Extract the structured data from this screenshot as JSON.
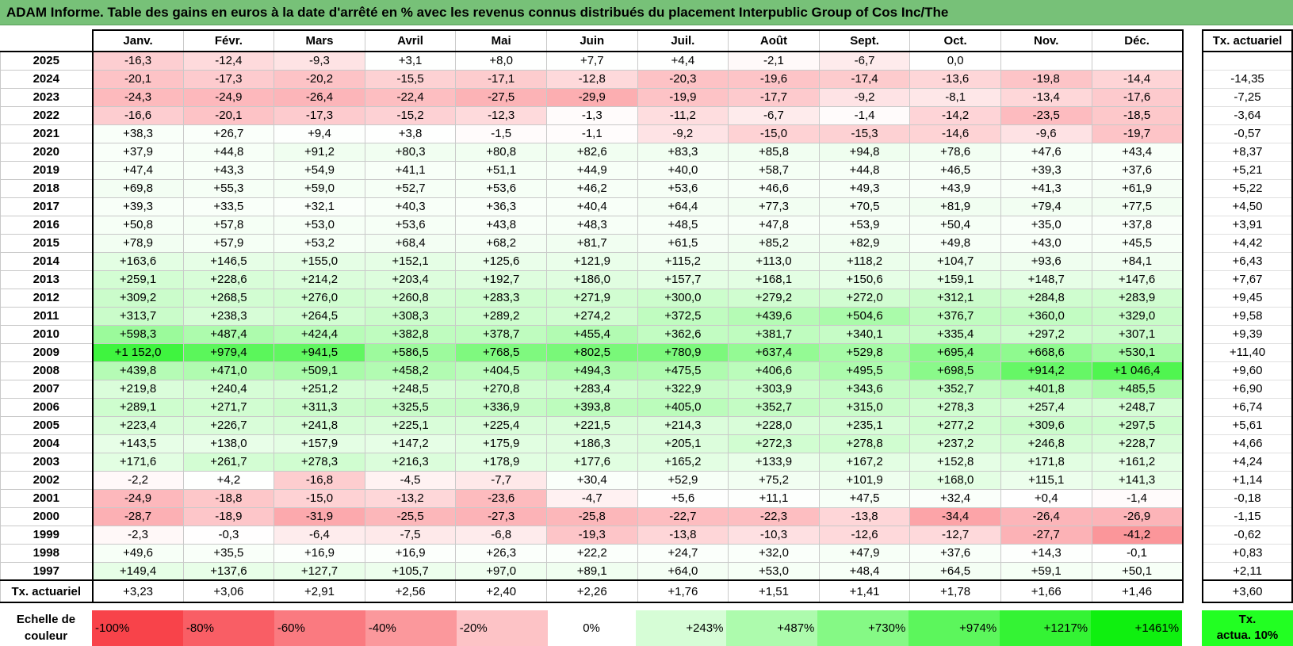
{
  "title": "ADAM Informe. Table des gains en euros à la date d'arrêté en % avec les revenus connus distribués du placement Interpublic Group of Cos Inc/The",
  "chart_data": {
    "type": "heatmap",
    "title": "ADAM Informe. Table des gains en euros à la date d'arrêté en % avec les revenus connus distribués du placement Interpublic Group of Cos Inc/The",
    "months": [
      "Janv.",
      "Févr.",
      "Mars",
      "Avril",
      "Mai",
      "Juin",
      "Juil.",
      "Août",
      "Sept.",
      "Oct.",
      "Nov.",
      "Déc."
    ],
    "rate_header": "Tx. actuariel",
    "rows": [
      {
        "year": "2025",
        "values": [
          "-16,3",
          "-12,4",
          "-9,3",
          "+3,1",
          "+8,0",
          "+7,7",
          "+4,4",
          "-2,1",
          "-6,7",
          "0,0",
          "",
          ""
        ],
        "rate": ""
      },
      {
        "year": "2024",
        "values": [
          "-20,1",
          "-17,3",
          "-20,2",
          "-15,5",
          "-17,1",
          "-12,8",
          "-20,3",
          "-19,6",
          "-17,4",
          "-13,6",
          "-19,8",
          "-14,4"
        ],
        "rate": "-14,35"
      },
      {
        "year": "2023",
        "values": [
          "-24,3",
          "-24,9",
          "-26,4",
          "-22,4",
          "-27,5",
          "-29,9",
          "-19,9",
          "-17,7",
          "-9,2",
          "-8,1",
          "-13,4",
          "-17,6"
        ],
        "rate": "-7,25"
      },
      {
        "year": "2022",
        "values": [
          "-16,6",
          "-20,1",
          "-17,3",
          "-15,2",
          "-12,3",
          "-1,3",
          "-11,2",
          "-6,7",
          "-1,4",
          "-14,2",
          "-23,5",
          "-18,5"
        ],
        "rate": "-3,64"
      },
      {
        "year": "2021",
        "values": [
          "+38,3",
          "+26,7",
          "+9,4",
          "+3,8",
          "-1,5",
          "-1,1",
          "-9,2",
          "-15,0",
          "-15,3",
          "-14,6",
          "-9,6",
          "-19,7"
        ],
        "rate": "-0,57"
      },
      {
        "year": "2020",
        "values": [
          "+37,9",
          "+44,8",
          "+91,2",
          "+80,3",
          "+80,8",
          "+82,6",
          "+83,3",
          "+85,8",
          "+94,8",
          "+78,6",
          "+47,6",
          "+43,4"
        ],
        "rate": "+8,37"
      },
      {
        "year": "2019",
        "values": [
          "+47,4",
          "+43,3",
          "+54,9",
          "+41,1",
          "+51,1",
          "+44,9",
          "+40,0",
          "+58,7",
          "+44,8",
          "+46,5",
          "+39,3",
          "+37,6"
        ],
        "rate": "+5,21"
      },
      {
        "year": "2018",
        "values": [
          "+69,8",
          "+55,3",
          "+59,0",
          "+52,7",
          "+53,6",
          "+46,2",
          "+53,6",
          "+46,6",
          "+49,3",
          "+43,9",
          "+41,3",
          "+61,9"
        ],
        "rate": "+5,22"
      },
      {
        "year": "2017",
        "values": [
          "+39,3",
          "+33,5",
          "+32,1",
          "+40,3",
          "+36,3",
          "+40,4",
          "+64,4",
          "+77,3",
          "+70,5",
          "+81,9",
          "+79,4",
          "+77,5"
        ],
        "rate": "+4,50"
      },
      {
        "year": "2016",
        "values": [
          "+50,8",
          "+57,8",
          "+53,0",
          "+53,6",
          "+43,8",
          "+48,3",
          "+48,5",
          "+47,8",
          "+53,9",
          "+50,4",
          "+35,0",
          "+37,8"
        ],
        "rate": "+3,91"
      },
      {
        "year": "2015",
        "values": [
          "+78,9",
          "+57,9",
          "+53,2",
          "+68,4",
          "+68,2",
          "+81,7",
          "+61,5",
          "+85,2",
          "+82,9",
          "+49,8",
          "+43,0",
          "+45,5"
        ],
        "rate": "+4,42"
      },
      {
        "year": "2014",
        "values": [
          "+163,6",
          "+146,5",
          "+155,0",
          "+152,1",
          "+125,6",
          "+121,9",
          "+115,2",
          "+113,0",
          "+118,2",
          "+104,7",
          "+93,6",
          "+84,1"
        ],
        "rate": "+6,43"
      },
      {
        "year": "2013",
        "values": [
          "+259,1",
          "+228,6",
          "+214,2",
          "+203,4",
          "+192,7",
          "+186,0",
          "+157,7",
          "+168,1",
          "+150,6",
          "+159,1",
          "+148,7",
          "+147,6"
        ],
        "rate": "+7,67"
      },
      {
        "year": "2012",
        "values": [
          "+309,2",
          "+268,5",
          "+276,0",
          "+260,8",
          "+283,3",
          "+271,9",
          "+300,0",
          "+279,2",
          "+272,0",
          "+312,1",
          "+284,8",
          "+283,9"
        ],
        "rate": "+9,45"
      },
      {
        "year": "2011",
        "values": [
          "+313,7",
          "+238,3",
          "+264,5",
          "+308,3",
          "+289,2",
          "+274,2",
          "+372,5",
          "+439,6",
          "+504,6",
          "+376,7",
          "+360,0",
          "+329,0"
        ],
        "rate": "+9,58"
      },
      {
        "year": "2010",
        "values": [
          "+598,3",
          "+487,4",
          "+424,4",
          "+382,8",
          "+378,7",
          "+455,4",
          "+362,6",
          "+381,7",
          "+340,1",
          "+335,4",
          "+297,2",
          "+307,1"
        ],
        "rate": "+9,39"
      },
      {
        "year": "2009",
        "values": [
          "+1 152,0",
          "+979,4",
          "+941,5",
          "+586,5",
          "+768,5",
          "+802,5",
          "+780,9",
          "+637,4",
          "+529,8",
          "+695,4",
          "+668,6",
          "+530,1"
        ],
        "rate": "+11,40"
      },
      {
        "year": "2008",
        "values": [
          "+439,8",
          "+471,0",
          "+509,1",
          "+458,2",
          "+404,5",
          "+494,3",
          "+475,5",
          "+406,6",
          "+495,5",
          "+698,5",
          "+914,2",
          "+1 046,4"
        ],
        "rate": "+9,60"
      },
      {
        "year": "2007",
        "values": [
          "+219,8",
          "+240,4",
          "+251,2",
          "+248,5",
          "+270,8",
          "+283,4",
          "+322,9",
          "+303,9",
          "+343,6",
          "+352,7",
          "+401,8",
          "+485,5"
        ],
        "rate": "+6,90"
      },
      {
        "year": "2006",
        "values": [
          "+289,1",
          "+271,7",
          "+311,3",
          "+325,5",
          "+336,9",
          "+393,8",
          "+405,0",
          "+352,7",
          "+315,0",
          "+278,3",
          "+257,4",
          "+248,7"
        ],
        "rate": "+6,74"
      },
      {
        "year": "2005",
        "values": [
          "+223,4",
          "+226,7",
          "+241,8",
          "+225,1",
          "+225,4",
          "+221,5",
          "+214,3",
          "+228,0",
          "+235,1",
          "+277,2",
          "+309,6",
          "+297,5"
        ],
        "rate": "+5,61"
      },
      {
        "year": "2004",
        "values": [
          "+143,5",
          "+138,0",
          "+157,9",
          "+147,2",
          "+175,9",
          "+186,3",
          "+205,1",
          "+272,3",
          "+278,8",
          "+237,2",
          "+246,8",
          "+228,7"
        ],
        "rate": "+4,66"
      },
      {
        "year": "2003",
        "values": [
          "+171,6",
          "+261,7",
          "+278,3",
          "+216,3",
          "+178,9",
          "+177,6",
          "+165,2",
          "+133,9",
          "+167,2",
          "+152,8",
          "+171,8",
          "+161,2"
        ],
        "rate": "+4,24"
      },
      {
        "year": "2002",
        "values": [
          "-2,2",
          "+4,2",
          "-16,8",
          "-4,5",
          "-7,7",
          "+30,4",
          "+52,9",
          "+75,2",
          "+101,9",
          "+168,0",
          "+115,1",
          "+141,3"
        ],
        "rate": "+1,14"
      },
      {
        "year": "2001",
        "values": [
          "-24,9",
          "-18,8",
          "-15,0",
          "-13,2",
          "-23,6",
          "-4,7",
          "+5,6",
          "+11,1",
          "+47,5",
          "+32,4",
          "+0,4",
          "-1,4"
        ],
        "rate": "-0,18"
      },
      {
        "year": "2000",
        "values": [
          "-28,7",
          "-18,9",
          "-31,9",
          "-25,5",
          "-27,3",
          "-25,8",
          "-22,7",
          "-22,3",
          "-13,8",
          "-34,4",
          "-26,4",
          "-26,9"
        ],
        "rate": "-1,15"
      },
      {
        "year": "1999",
        "values": [
          "-2,3",
          "-0,3",
          "-6,4",
          "-7,5",
          "-6,8",
          "-19,3",
          "-13,8",
          "-10,3",
          "-12,6",
          "-12,7",
          "-27,7",
          "-41,2"
        ],
        "rate": "-0,62"
      },
      {
        "year": "1998",
        "values": [
          "+49,6",
          "+35,5",
          "+16,9",
          "+16,9",
          "+26,3",
          "+22,2",
          "+24,7",
          "+32,0",
          "+47,9",
          "+37,6",
          "+14,3",
          "-0,1"
        ],
        "rate": "+0,83"
      },
      {
        "year": "1997",
        "values": [
          "+149,4",
          "+137,6",
          "+127,7",
          "+105,7",
          "+97,0",
          "+89,1",
          "+64,0",
          "+53,0",
          "+48,4",
          "+64,5",
          "+59,1",
          "+50,1"
        ],
        "rate": "+2,11"
      }
    ],
    "footer": {
      "label": "Tx. actuariel",
      "values": [
        "+3,23",
        "+3,06",
        "+2,91",
        "+2,56",
        "+2,40",
        "+2,26",
        "+1,76",
        "+1,51",
        "+1,41",
        "+1,78",
        "+1,66",
        "+1,46"
      ],
      "rate": "+3,60"
    },
    "scale": {
      "label": "Echelle de couleur",
      "steps": [
        {
          "label": "-100%",
          "value": -100,
          "color": "#f8434a"
        },
        {
          "label": "-80%",
          "value": -80,
          "color": "#f95e65"
        },
        {
          "label": "-60%",
          "value": -60,
          "color": "#fa7a80"
        },
        {
          "label": "-40%",
          "value": -40,
          "color": "#fb989c"
        },
        {
          "label": "-20%",
          "value": -20,
          "color": "#fdc3c6"
        },
        {
          "label": "0%",
          "value": 0,
          "color": "#ffffff"
        },
        {
          "label": "+243%",
          "value": 243,
          "color": "#d6fdd6"
        },
        {
          "label": "+487%",
          "value": 487,
          "color": "#adfbad"
        },
        {
          "label": "+730%",
          "value": 730,
          "color": "#85f985"
        },
        {
          "label": "+974%",
          "value": 974,
          "color": "#5cf65c"
        },
        {
          "label": "+1217%",
          "value": 1217,
          "color": "#34f334"
        },
        {
          "label": "+1461%",
          "value": 1461,
          "color": "#0ff00f"
        }
      ],
      "rate_label_line1": "Tx.",
      "rate_label_line2": "actua. 10%",
      "rate_color": "#22ff22"
    }
  }
}
